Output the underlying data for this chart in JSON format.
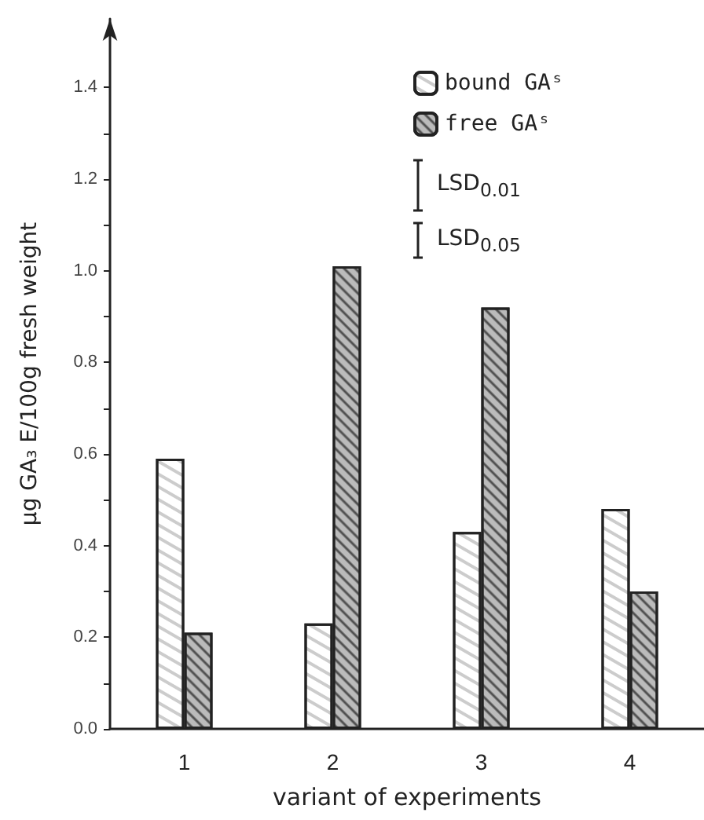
{
  "chart_data": {
    "type": "bar",
    "xlabel": "variant of experiments",
    "ylabel": "µg GA₃ E/100g fresh weight",
    "categories": [
      "1",
      "2",
      "3",
      "4"
    ],
    "series": [
      {
        "name": "bound GAˢ",
        "color": "#ffffff",
        "values": [
          0.59,
          0.23,
          0.43,
          0.48
        ]
      },
      {
        "name": "free GAˢ",
        "color": "#bbbbbb",
        "values": [
          0.21,
          1.01,
          0.92,
          0.3
        ]
      }
    ],
    "ylim": [
      0,
      1.55
    ],
    "yticks": [
      {
        "value": 0,
        "label": "0.0"
      },
      {
        "value": 0.1,
        "label": null
      },
      {
        "value": 0.2,
        "label": "0.2"
      },
      {
        "value": 0.3,
        "label": null
      },
      {
        "value": 0.4,
        "label": "0.4"
      },
      {
        "value": 0.5,
        "label": null
      },
      {
        "value": 0.6,
        "label": "0.6"
      },
      {
        "value": 0.7,
        "label": null
      },
      {
        "value": 0.8,
        "label": "0.8"
      },
      {
        "value": 0.9,
        "label": null
      },
      {
        "value": 1.0,
        "label": "1.0"
      },
      {
        "value": 1.1,
        "label": null
      },
      {
        "value": 1.2,
        "label": "1.2"
      },
      {
        "value": 1.3,
        "label": null
      },
      {
        "value": 1.4,
        "label": "1.4"
      }
    ],
    "annotations": [
      "LSD$_{0.01}$",
      "LSD$_{0.05}$"
    ],
    "grid": false,
    "legend": "top right"
  }
}
